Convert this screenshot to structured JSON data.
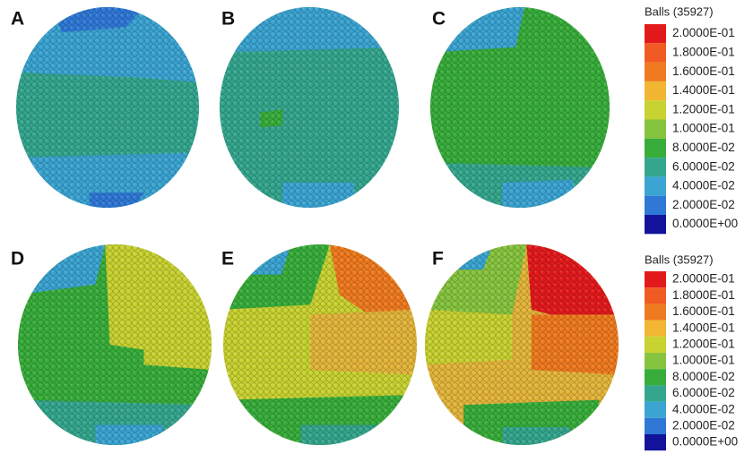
{
  "panels": [
    {
      "label": "A"
    },
    {
      "label": "B"
    },
    {
      "label": "C"
    },
    {
      "label": "D"
    },
    {
      "label": "E"
    },
    {
      "label": "F"
    }
  ],
  "legends": [
    {
      "title": "Balls (35927)",
      "labels": [
        "2.0000E-01",
        "1.8000E-01",
        "1.6000E-01",
        "1.4000E-01",
        "1.2000E-01",
        "1.0000E-01",
        "8.0000E-02",
        "6.0000E-02",
        "4.0000E-02",
        "2.0000E-02",
        "0.0000E+00"
      ]
    },
    {
      "title": "Balls (35927)",
      "labels": [
        "2.0000E-01",
        "1.8000E-01",
        "1.6000E-01",
        "1.4000E-01",
        "1.2000E-01",
        "1.0000E-01",
        "8.0000E-02",
        "6.0000E-02",
        "4.0000E-02",
        "2.0000E-02",
        "0.0000E+00"
      ]
    }
  ]
}
